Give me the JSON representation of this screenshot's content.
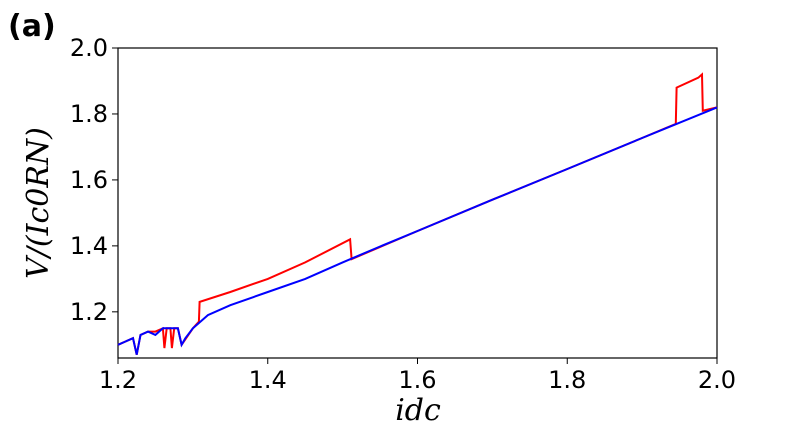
{
  "chart_data": {
    "type": "line",
    "panel_label": "(a)",
    "xlabel": "idc",
    "ylabel": "V/(Ic0RN)",
    "xlim": [
      1.2,
      2.0
    ],
    "ylim": [
      1.06,
      2.0
    ],
    "xticks": [
      1.2,
      1.4,
      1.6,
      1.8,
      {
        "value": 2,
        "label": "2.0"
      }
    ],
    "yticks": [
      1.2,
      1.4,
      1.6,
      1.8,
      {
        "value": 2,
        "label": "2.0"
      }
    ],
    "series": [
      {
        "color": "#ff0000",
        "x": [
          1.2,
          1.21,
          1.22,
          1.225,
          1.23,
          1.24,
          1.25,
          1.26,
          1.262,
          1.265,
          1.27,
          1.272,
          1.275,
          1.28,
          1.285,
          1.3,
          1.308,
          1.309,
          1.35,
          1.4,
          1.45,
          1.51,
          1.512,
          1.6,
          1.7,
          1.8,
          1.9,
          1.945,
          1.946,
          1.975,
          1.98,
          1.981,
          2.0
        ],
        "values": [
          1.1,
          1.11,
          1.12,
          1.07,
          1.13,
          1.14,
          1.14,
          1.15,
          1.09,
          1.15,
          1.15,
          1.09,
          1.15,
          1.15,
          1.1,
          1.15,
          1.17,
          1.23,
          1.26,
          1.3,
          1.35,
          1.42,
          1.36,
          1.445,
          1.54,
          1.633,
          1.727,
          1.77,
          1.88,
          1.91,
          1.92,
          1.81,
          1.82
        ]
      },
      {
        "color": "#0000ff",
        "x": [
          1.2,
          1.21,
          1.22,
          1.225,
          1.23,
          1.24,
          1.25,
          1.26,
          1.27,
          1.28,
          1.285,
          1.29,
          1.3,
          1.32,
          1.35,
          1.4,
          1.45,
          1.5,
          1.55,
          1.6,
          1.7,
          1.8,
          1.9,
          2.0
        ],
        "values": [
          1.1,
          1.11,
          1.12,
          1.07,
          1.13,
          1.14,
          1.13,
          1.15,
          1.15,
          1.15,
          1.1,
          1.12,
          1.15,
          1.19,
          1.22,
          1.26,
          1.3,
          1.35,
          1.398,
          1.445,
          1.54,
          1.633,
          1.727,
          1.82
        ]
      }
    ]
  }
}
